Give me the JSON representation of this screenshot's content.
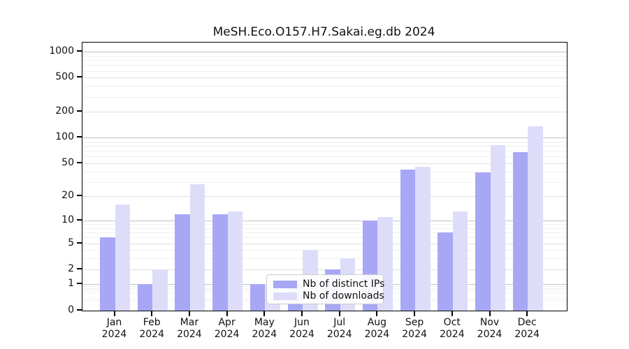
{
  "title": "MeSH.Eco.O157.H7.Sakai.eg.db 2024",
  "chart_data": {
    "type": "bar",
    "title": "MeSH.Eco.O157.H7.Sakai.eg.db 2024",
    "categories": [
      "Jan",
      "Feb",
      "Mar",
      "Apr",
      "May",
      "Jun",
      "Jul",
      "Aug",
      "Sep",
      "Oct",
      "Nov",
      "Dec"
    ],
    "category_year": "2024",
    "series": [
      {
        "name": "Nb of distinct IPs",
        "color": "#a7a7f6",
        "values": [
          6,
          1,
          12,
          12,
          1,
          1,
          2,
          10,
          42,
          7,
          39,
          67
        ]
      },
      {
        "name": "Nb of downloads",
        "color": "#ddddfa",
        "values": [
          16,
          2,
          28,
          13,
          1,
          4,
          3,
          11,
          45,
          13,
          82,
          135
        ]
      }
    ],
    "y_ticks": [
      0,
      1,
      2,
      5,
      10,
      20,
      50,
      100,
      200,
      500,
      1000
    ],
    "y_scale": "log1p",
    "ylim": [
      0,
      1285
    ],
    "grid": true,
    "legend_position": "lower-center-left"
  }
}
